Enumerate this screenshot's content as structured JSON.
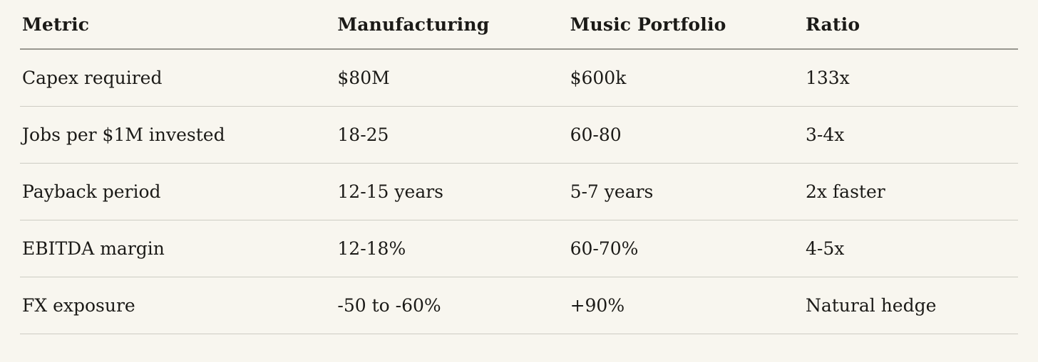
{
  "table": {
    "columns": [
      "Metric",
      "Manufacturing",
      "Music Portfolio",
      "Ratio"
    ],
    "rows": [
      {
        "cells": [
          "Capex required",
          "$80M",
          "$600k",
          "133x"
        ]
      },
      {
        "cells": [
          "Jobs per $1M invested",
          "18-25",
          "60-80",
          "3-4x"
        ]
      },
      {
        "cells": [
          "Payback period",
          "12-15 years",
          "5-7 years",
          "2x faster"
        ]
      },
      {
        "cells": [
          "EBITDA margin",
          "12-18%",
          "60-70%",
          "4-5x"
        ]
      },
      {
        "cells": [
          "FX exposure",
          "-50 to -60%",
          "+90%",
          "Natural hedge"
        ]
      }
    ]
  },
  "chart_data": {
    "type": "table",
    "columns": [
      "Metric",
      "Manufacturing",
      "Music Portfolio",
      "Ratio"
    ],
    "rows": [
      [
        "Capex required",
        "$80M",
        "$600k",
        "133x"
      ],
      [
        "Jobs per $1M invested",
        "18-25",
        "60-80",
        "3-4x"
      ],
      [
        "Payback period",
        "12-15 years",
        "5-7 years",
        "2x faster"
      ],
      [
        "EBITDA margin",
        "12-18%",
        "60-70%",
        "4-5x"
      ],
      [
        "FX exposure",
        "-50 to -60%",
        "+90%",
        "Natural hedge"
      ]
    ]
  },
  "colors": {
    "background": "#f8f6ef",
    "text": "#1b1a17",
    "header_border": "#98978f",
    "row_border": "#cdccc3"
  }
}
